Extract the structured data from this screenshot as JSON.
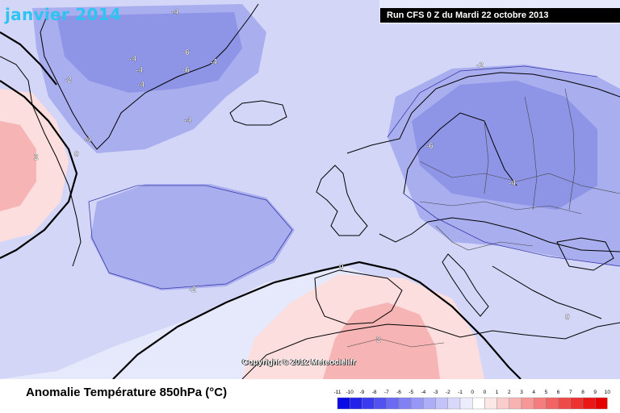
{
  "header": {
    "title": "janvier 2014",
    "run_label": "Run CFS 0 Z du Mardi 22 octobre 2013"
  },
  "map": {
    "copyright": "Copyright © 2012 Meteociel.fr",
    "contour_labels": [
      "-4",
      "-4",
      "-4",
      "-6",
      "-6",
      "-4",
      "-4",
      "-4",
      "-2",
      "2",
      "0",
      "-4",
      "-2",
      "-6",
      "-4",
      "-2",
      "0",
      "2",
      "0"
    ],
    "colors": {
      "background": "#e6e8fb",
      "weak_negative": "#d3d6f7",
      "moderate_negative": "#a9aeee",
      "strong_negative": "#8f95e6",
      "weak_positive": "#fcdede",
      "moderate_positive": "#f6b4b4",
      "land_outline": "#000000"
    }
  },
  "footer": {
    "title": "Anomalie Température 850hPa (°C)"
  },
  "legend": {
    "ticks": [
      "-11",
      "-10",
      "-9",
      "-8",
      "-7",
      "-6",
      "-5",
      "-4",
      "-3",
      "-2",
      "-1",
      "0",
      "0",
      "1",
      "2",
      "3",
      "4",
      "5",
      "6",
      "7",
      "8",
      "9",
      "10"
    ],
    "colors": [
      "#0b0be6",
      "#2222ea",
      "#3a3aee",
      "#5252f0",
      "#6a6af2",
      "#8181f4",
      "#9797f6",
      "#adadf8",
      "#c3c3fa",
      "#d8d8fb",
      "#ececfd",
      "#ffffff",
      "#fde6e6",
      "#fbcccc",
      "#f9b2b2",
      "#f79898",
      "#f47e7e",
      "#f26464",
      "#ef4a4a",
      "#ed3030",
      "#eb1616",
      "#e60000"
    ]
  }
}
